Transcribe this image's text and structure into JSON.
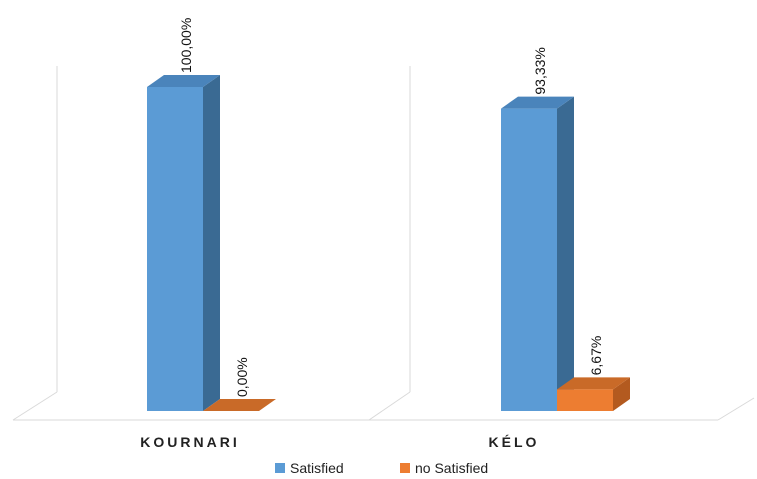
{
  "chart_data": {
    "type": "bar",
    "categories": [
      "KOURNARI",
      "KÉLO"
    ],
    "series": [
      {
        "name": "Satisfied",
        "values": [
          100.0,
          93.33
        ],
        "labels": [
          "100,00%",
          "93,33%"
        ],
        "color": "#5b9bd5",
        "side_color": "#3a6a93",
        "top_color": "#4a84bb"
      },
      {
        "name": "no Satisfied",
        "values": [
          0.0,
          6.67
        ],
        "labels": [
          "0,00%",
          "6,67%"
        ],
        "color": "#ed7d31",
        "side_color": "#b35a1f",
        "top_color": "#c96a28"
      }
    ],
    "ylim": [
      0,
      100
    ],
    "three_d": true,
    "data_label_rotation": "vertical",
    "legend_position": "bottom",
    "grid": false
  }
}
